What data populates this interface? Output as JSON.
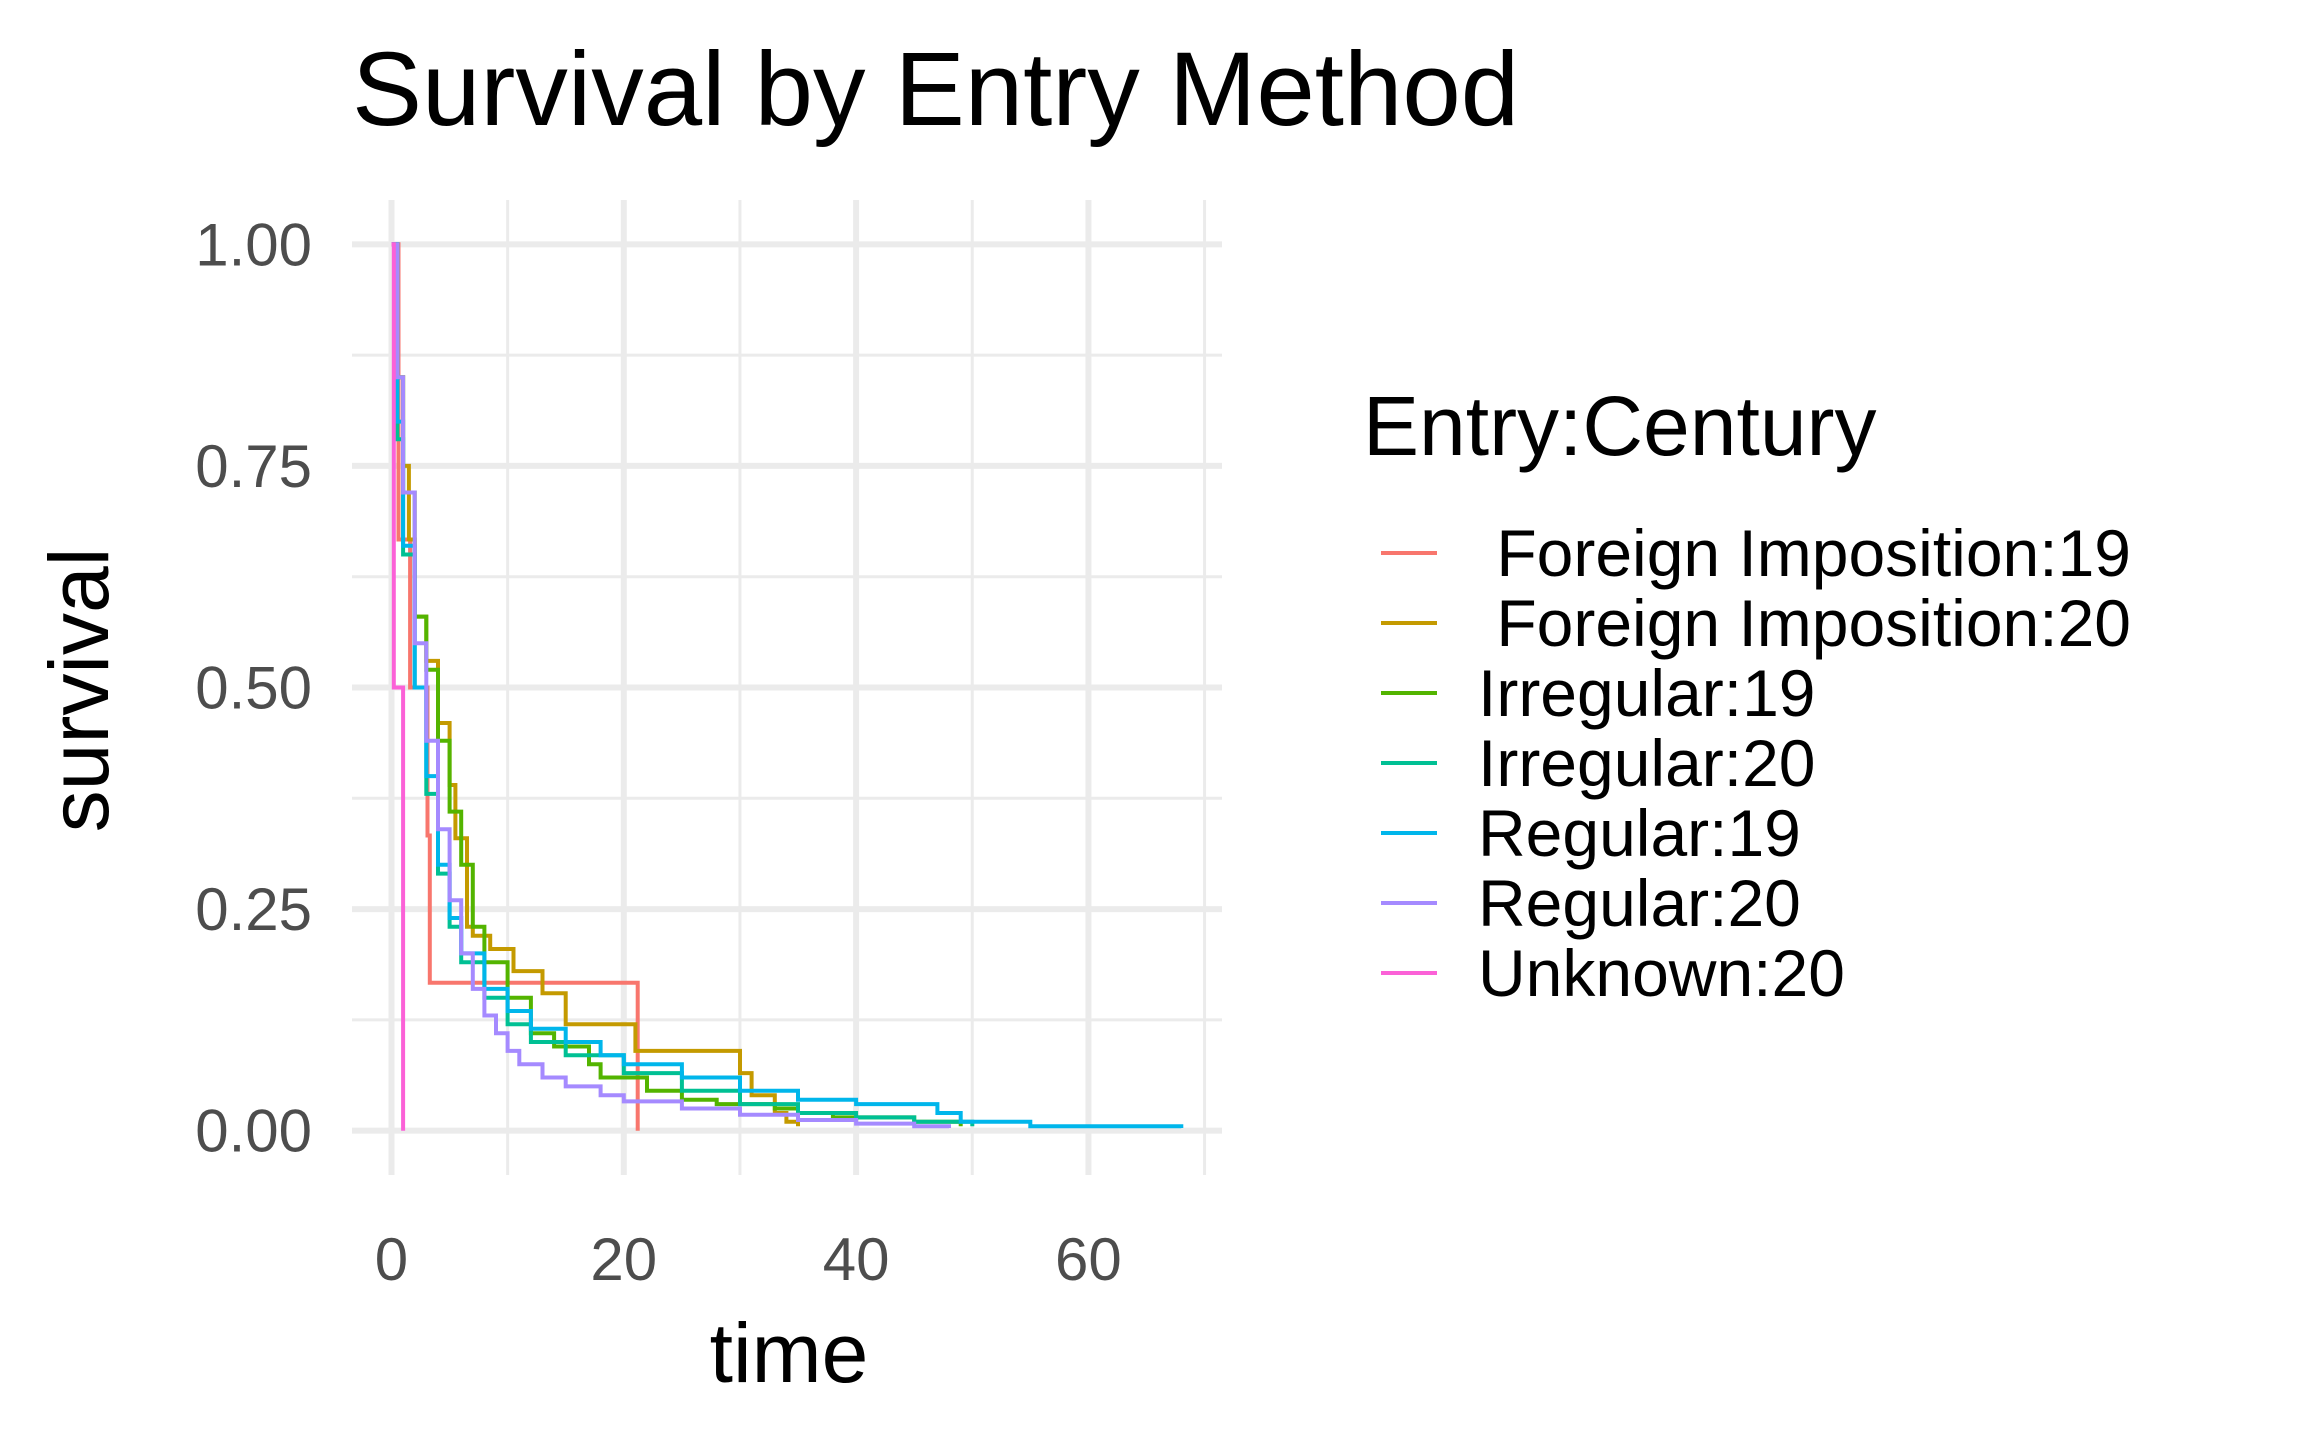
{
  "chart_data": {
    "type": "line",
    "step": true,
    "title": "Survival by Entry Method",
    "xlabel": "time",
    "ylabel": "survival",
    "xlim": [
      -3.4,
      71.5
    ],
    "ylim": [
      -0.05,
      1.05
    ],
    "x_ticks": [
      0,
      20,
      40,
      60
    ],
    "x_tick_labels": [
      "0",
      "20",
      "40",
      "60"
    ],
    "y_ticks": [
      0,
      0.25,
      0.5,
      0.75,
      1
    ],
    "y_tick_labels": [
      "0.00",
      "0.25",
      "0.50",
      "0.75",
      "1.00"
    ],
    "grid": true,
    "legend": {
      "title": "Entry:Century",
      "position": "right"
    },
    "series": [
      {
        "name": " Foreign Imposition:19",
        "color": "#F8766D",
        "points": [
          [
            0,
            1
          ],
          [
            0.5,
            1
          ],
          [
            0.6,
            0.667
          ],
          [
            1.5,
            0.667
          ],
          [
            1.6,
            0.5
          ],
          [
            3,
            0.5
          ],
          [
            3.1,
            0.333
          ],
          [
            3.2,
            0.333
          ],
          [
            3.3,
            0.167
          ],
          [
            21.1,
            0.167
          ],
          [
            21.2,
            0
          ]
        ]
      },
      {
        "name": " Foreign Imposition:20",
        "color": "#C49A00",
        "points": [
          [
            0,
            1
          ],
          [
            0.5,
            0.85
          ],
          [
            1,
            0.75
          ],
          [
            1.5,
            0.667
          ],
          [
            2,
            0.58
          ],
          [
            3,
            0.53
          ],
          [
            4,
            0.46
          ],
          [
            5,
            0.39
          ],
          [
            5.5,
            0.33
          ],
          [
            6.5,
            0.23
          ],
          [
            7,
            0.22
          ],
          [
            8,
            0.22
          ],
          [
            8.5,
            0.205
          ],
          [
            10.5,
            0.18
          ],
          [
            13,
            0.155
          ],
          [
            15,
            0.12
          ],
          [
            21,
            0.09
          ],
          [
            30,
            0.065
          ],
          [
            31,
            0.04
          ],
          [
            33,
            0.02
          ],
          [
            34,
            0.01
          ],
          [
            35,
            0.005
          ]
        ]
      },
      {
        "name": "Irregular:19",
        "color": "#53B400",
        "points": [
          [
            0,
            1
          ],
          [
            0.5,
            0.85
          ],
          [
            1,
            0.72
          ],
          [
            2,
            0.58
          ],
          [
            3,
            0.52
          ],
          [
            4,
            0.44
          ],
          [
            5,
            0.36
          ],
          [
            6,
            0.3
          ],
          [
            7,
            0.23
          ],
          [
            8,
            0.19
          ],
          [
            10,
            0.15
          ],
          [
            12,
            0.11
          ],
          [
            14,
            0.095
          ],
          [
            17,
            0.075
          ],
          [
            18,
            0.06
          ],
          [
            22,
            0.045
          ],
          [
            25,
            0.035
          ],
          [
            28,
            0.03
          ],
          [
            33,
            0.025
          ],
          [
            35,
            0.02
          ],
          [
            38,
            0.015
          ],
          [
            45,
            0.01
          ],
          [
            49,
            0.005
          ]
        ]
      },
      {
        "name": "Irregular:20",
        "color": "#00C094",
        "points": [
          [
            0,
            1
          ],
          [
            0.5,
            0.78
          ],
          [
            1,
            0.65
          ],
          [
            2,
            0.5
          ],
          [
            3,
            0.38
          ],
          [
            4,
            0.29
          ],
          [
            5,
            0.23
          ],
          [
            6,
            0.19
          ],
          [
            8,
            0.15
          ],
          [
            10,
            0.12
          ],
          [
            12,
            0.1
          ],
          [
            15,
            0.085
          ],
          [
            20,
            0.065
          ],
          [
            25,
            0.045
          ],
          [
            30,
            0.03
          ],
          [
            35,
            0.02
          ],
          [
            40,
            0.015
          ],
          [
            45,
            0.01
          ],
          [
            50,
            0.005
          ]
        ]
      },
      {
        "name": "Regular:19",
        "color": "#00B6EB",
        "points": [
          [
            0,
            1
          ],
          [
            0.5,
            0.8
          ],
          [
            1,
            0.66
          ],
          [
            2,
            0.5
          ],
          [
            3,
            0.4
          ],
          [
            4,
            0.3
          ],
          [
            5,
            0.24
          ],
          [
            6,
            0.2
          ],
          [
            8,
            0.16
          ],
          [
            10,
            0.135
          ],
          [
            12,
            0.115
          ],
          [
            15,
            0.1
          ],
          [
            18,
            0.085
          ],
          [
            20,
            0.075
          ],
          [
            25,
            0.06
          ],
          [
            30,
            0.045
          ],
          [
            35,
            0.035
          ],
          [
            40,
            0.03
          ],
          [
            47,
            0.02
          ],
          [
            49,
            0.01
          ],
          [
            55,
            0.005
          ],
          [
            68,
            0.003
          ]
        ]
      },
      {
        "name": "Regular:20",
        "color": "#A58AFF",
        "points": [
          [
            0,
            1
          ],
          [
            0.5,
            0.85
          ],
          [
            1,
            0.72
          ],
          [
            2,
            0.55
          ],
          [
            3,
            0.44
          ],
          [
            4,
            0.34
          ],
          [
            5,
            0.26
          ],
          [
            6,
            0.2
          ],
          [
            7,
            0.16
          ],
          [
            8,
            0.13
          ],
          [
            9,
            0.11
          ],
          [
            10,
            0.09
          ],
          [
            11,
            0.075
          ],
          [
            13,
            0.06
          ],
          [
            15,
            0.05
          ],
          [
            18,
            0.04
          ],
          [
            20,
            0.033
          ],
          [
            25,
            0.025
          ],
          [
            30,
            0.018
          ],
          [
            35,
            0.012
          ],
          [
            40,
            0.008
          ],
          [
            45,
            0.005
          ],
          [
            48,
            0.003
          ]
        ]
      },
      {
        "name": "Unknown:20",
        "color": "#FB61D7",
        "points": [
          [
            0,
            1
          ],
          [
            0.1,
            1
          ],
          [
            0.2,
            0.5
          ],
          [
            0.9,
            0.5
          ],
          [
            1,
            0
          ]
        ]
      }
    ]
  }
}
